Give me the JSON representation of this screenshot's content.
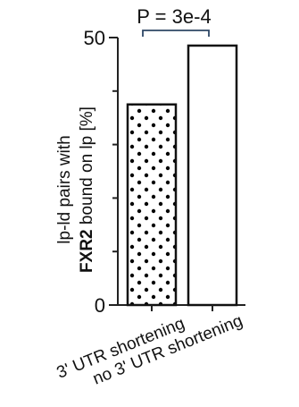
{
  "chart_data": {
    "type": "bar",
    "categories": [
      "3' UTR shortening",
      "no 3' UTR shortening"
    ],
    "values": [
      37.5,
      48.5
    ],
    "ylim": [
      0,
      50
    ],
    "y_tick_labels": [
      "0",
      "50"
    ],
    "ylabel_line1": "lp-ld pairs with",
    "ylabel_line2_bold": "FXR2",
    "ylabel_line2_rest": " bound on lp [%]",
    "annotation": "P = 3e-4",
    "bar_fills": [
      "dotted",
      "white"
    ],
    "grid": false,
    "legend": "none"
  }
}
